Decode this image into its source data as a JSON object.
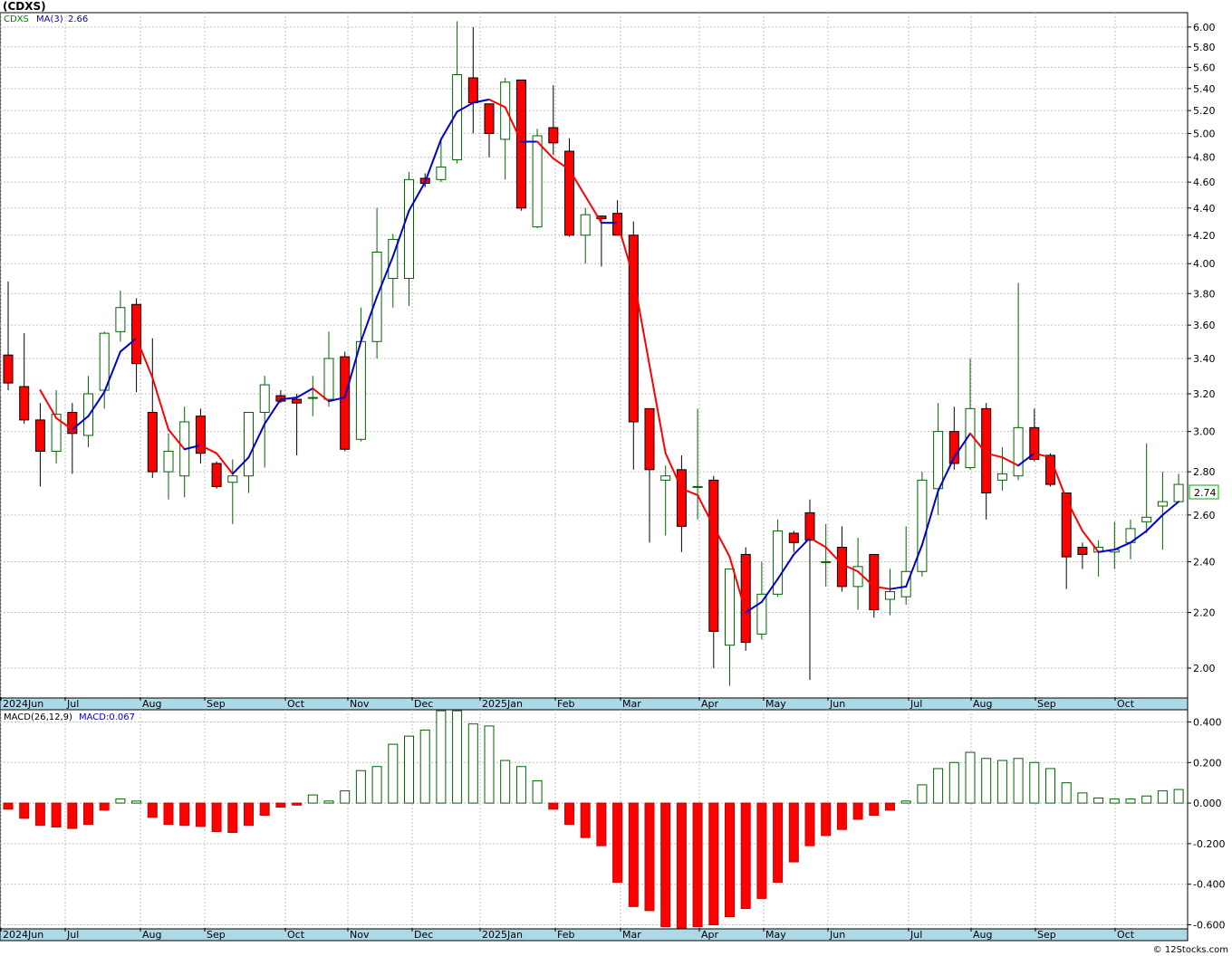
{
  "chart_data": [
    {
      "type": "candlestick",
      "title": "(CDXS)",
      "legend": [
        {
          "label": "CDXS",
          "color": "#008000"
        },
        {
          "label": "MA(3)",
          "color": "#0000cc"
        },
        {
          "label": "2.66",
          "color": "#0000cc"
        }
      ],
      "last_price": "2.74",
      "last_price_color": "#00aa00",
      "y_scale": "log",
      "ylim": [
        1.9,
        6.15
      ],
      "yticks": [
        "6.00",
        "5.80",
        "5.60",
        "5.40",
        "5.20",
        "5.00",
        "4.80",
        "4.60",
        "4.40",
        "4.20",
        "4.00",
        "3.80",
        "3.60",
        "3.40",
        "3.20",
        "3.00",
        "2.80",
        "2.60",
        "2.40",
        "2.20",
        "2.00"
      ],
      "grid": true,
      "x_labels": [
        "2024Jun",
        "Jul",
        "Aug",
        "Sep",
        "Oct",
        "Nov",
        "Dec",
        "2025Jan",
        "Feb",
        "Mar",
        "Apr",
        "May",
        "Jun",
        "Jul",
        "Aug",
        "Sep",
        "Oct"
      ],
      "up_color": "#006400",
      "down_color": "#ff0000",
      "candles": [
        {
          "o": 3.42,
          "h": 3.88,
          "l": 3.22,
          "c": 3.26
        },
        {
          "o": 3.24,
          "h": 3.55,
          "l": 3.04,
          "c": 3.06
        },
        {
          "o": 3.06,
          "h": 3.15,
          "l": 2.73,
          "c": 2.9
        },
        {
          "o": 2.9,
          "h": 3.22,
          "l": 2.84,
          "c": 3.09
        },
        {
          "o": 3.1,
          "h": 3.15,
          "l": 2.79,
          "c": 2.99
        },
        {
          "o": 2.98,
          "h": 3.3,
          "l": 2.92,
          "c": 3.2
        },
        {
          "o": 3.22,
          "h": 3.56,
          "l": 3.12,
          "c": 3.55
        },
        {
          "o": 3.56,
          "h": 3.82,
          "l": 3.5,
          "c": 3.71
        },
        {
          "o": 3.73,
          "h": 3.77,
          "l": 3.21,
          "c": 3.37
        },
        {
          "o": 3.1,
          "h": 3.52,
          "l": 2.77,
          "c": 2.8
        },
        {
          "o": 2.8,
          "h": 2.99,
          "l": 2.67,
          "c": 2.9
        },
        {
          "o": 2.78,
          "h": 3.13,
          "l": 2.68,
          "c": 3.05
        },
        {
          "o": 3.08,
          "h": 3.12,
          "l": 2.84,
          "c": 2.89
        },
        {
          "o": 2.84,
          "h": 2.85,
          "l": 2.72,
          "c": 2.73
        },
        {
          "o": 2.75,
          "h": 2.86,
          "l": 2.56,
          "c": 2.78
        },
        {
          "o": 2.78,
          "h": 3.07,
          "l": 2.7,
          "c": 3.1
        },
        {
          "o": 3.1,
          "h": 3.3,
          "l": 2.82,
          "c": 3.25
        },
        {
          "o": 3.19,
          "h": 3.22,
          "l": 3.15,
          "c": 3.16
        },
        {
          "o": 3.17,
          "h": 3.2,
          "l": 2.88,
          "c": 3.15
        },
        {
          "o": 3.18,
          "h": 3.3,
          "l": 3.08,
          "c": 3.18
        },
        {
          "o": 3.17,
          "h": 3.56,
          "l": 3.13,
          "c": 3.4
        },
        {
          "o": 3.41,
          "h": 3.44,
          "l": 2.9,
          "c": 2.91
        },
        {
          "o": 2.96,
          "h": 3.71,
          "l": 2.95,
          "c": 3.5
        },
        {
          "o": 3.5,
          "h": 4.4,
          "l": 3.4,
          "c": 4.08
        },
        {
          "o": 3.9,
          "h": 4.21,
          "l": 3.71,
          "c": 4.17
        },
        {
          "o": 3.9,
          "h": 4.68,
          "l": 3.72,
          "c": 4.62
        },
        {
          "o": 4.63,
          "h": 4.67,
          "l": 4.56,
          "c": 4.59
        },
        {
          "o": 4.62,
          "h": 4.96,
          "l": 4.6,
          "c": 4.72
        },
        {
          "o": 4.78,
          "h": 6.06,
          "l": 4.75,
          "c": 5.53
        },
        {
          "o": 5.5,
          "h": 6.0,
          "l": 5.0,
          "c": 5.27
        },
        {
          "o": 5.26,
          "h": 5.26,
          "l": 4.8,
          "c": 5.0
        },
        {
          "o": 4.95,
          "h": 5.5,
          "l": 4.62,
          "c": 5.46
        },
        {
          "o": 5.48,
          "h": 5.47,
          "l": 4.38,
          "c": 4.4
        },
        {
          "o": 4.26,
          "h": 5.04,
          "l": 4.25,
          "c": 4.98
        },
        {
          "o": 5.05,
          "h": 5.43,
          "l": 4.82,
          "c": 4.92
        },
        {
          "o": 4.85,
          "h": 4.96,
          "l": 4.19,
          "c": 4.2
        },
        {
          "o": 4.2,
          "h": 4.4,
          "l": 4.0,
          "c": 4.35
        },
        {
          "o": 4.34,
          "h": 4.34,
          "l": 3.98,
          "c": 4.32
        },
        {
          "o": 4.36,
          "h": 4.46,
          "l": 4.2,
          "c": 4.2
        },
        {
          "o": 4.2,
          "h": 4.3,
          "l": 2.81,
          "c": 3.05
        },
        {
          "o": 3.12,
          "h": 3.12,
          "l": 2.48,
          "c": 2.81
        },
        {
          "o": 2.76,
          "h": 2.83,
          "l": 2.51,
          "c": 2.78
        },
        {
          "o": 2.81,
          "h": 2.88,
          "l": 2.44,
          "c": 2.55
        },
        {
          "o": 2.73,
          "h": 3.12,
          "l": 2.58,
          "c": 2.73
        },
        {
          "o": 2.76,
          "h": 2.78,
          "l": 2.0,
          "c": 2.13
        },
        {
          "o": 2.08,
          "h": 2.37,
          "l": 1.94,
          "c": 2.37
        },
        {
          "o": 2.43,
          "h": 2.46,
          "l": 2.06,
          "c": 2.09
        },
        {
          "o": 2.12,
          "h": 2.4,
          "l": 2.1,
          "c": 2.27
        },
        {
          "o": 2.27,
          "h": 2.58,
          "l": 2.26,
          "c": 2.53
        },
        {
          "o": 2.52,
          "h": 2.53,
          "l": 2.44,
          "c": 2.48
        },
        {
          "o": 2.61,
          "h": 2.67,
          "l": 1.96,
          "c": 2.49
        },
        {
          "o": 2.4,
          "h": 2.56,
          "l": 2.3,
          "c": 2.4
        },
        {
          "o": 2.46,
          "h": 2.55,
          "l": 2.28,
          "c": 2.3
        },
        {
          "o": 2.3,
          "h": 2.5,
          "l": 2.21,
          "c": 2.38
        },
        {
          "o": 2.43,
          "h": 2.43,
          "l": 2.18,
          "c": 2.21
        },
        {
          "o": 2.25,
          "h": 2.37,
          "l": 2.19,
          "c": 2.28
        },
        {
          "o": 2.26,
          "h": 2.55,
          "l": 2.23,
          "c": 2.36
        },
        {
          "o": 2.36,
          "h": 2.8,
          "l": 2.34,
          "c": 2.76
        },
        {
          "o": 2.72,
          "h": 3.15,
          "l": 2.6,
          "c": 3.0
        },
        {
          "o": 3.0,
          "h": 3.13,
          "l": 2.81,
          "c": 2.84
        },
        {
          "o": 2.82,
          "h": 3.4,
          "l": 2.81,
          "c": 3.12
        },
        {
          "o": 3.12,
          "h": 3.15,
          "l": 2.58,
          "c": 2.7
        },
        {
          "o": 2.76,
          "h": 2.92,
          "l": 2.71,
          "c": 2.79
        },
        {
          "o": 2.78,
          "h": 3.87,
          "l": 2.76,
          "c": 3.02
        },
        {
          "o": 3.02,
          "h": 3.12,
          "l": 2.85,
          "c": 2.86
        },
        {
          "o": 2.88,
          "h": 2.89,
          "l": 2.73,
          "c": 2.74
        },
        {
          "o": 2.7,
          "h": 2.7,
          "l": 2.29,
          "c": 2.42
        },
        {
          "o": 2.46,
          "h": 2.48,
          "l": 2.37,
          "c": 2.43
        },
        {
          "o": 2.44,
          "h": 2.49,
          "l": 2.34,
          "c": 2.46
        },
        {
          "o": 2.44,
          "h": 2.57,
          "l": 2.37,
          "c": 2.45
        },
        {
          "o": 2.48,
          "h": 2.58,
          "l": 2.41,
          "c": 2.54
        },
        {
          "o": 2.57,
          "h": 2.94,
          "l": 2.52,
          "c": 2.59
        },
        {
          "o": 2.64,
          "h": 2.8,
          "l": 2.45,
          "c": 2.66
        },
        {
          "o": 2.66,
          "h": 2.79,
          "l": 2.66,
          "c": 2.74
        }
      ],
      "ma3": [
        null,
        null,
        3.22,
        3.07,
        3.01,
        3.08,
        3.21,
        3.44,
        3.52,
        3.29,
        3.01,
        2.91,
        2.93,
        2.89,
        2.79,
        2.87,
        3.04,
        3.17,
        3.18,
        3.23,
        3.16,
        3.18,
        3.5,
        3.78,
        4.05,
        4.38,
        4.6,
        4.95,
        5.19,
        5.27,
        5.3,
        5.23,
        4.93,
        4.93,
        4.79,
        4.7,
        4.49,
        4.29,
        4.29,
        3.91,
        3.36,
        2.89,
        2.72,
        2.69,
        2.55,
        2.42,
        2.2,
        2.24,
        2.33,
        2.43,
        2.5,
        2.46,
        2.39,
        2.36,
        2.3,
        2.29,
        2.3,
        2.47,
        2.71,
        2.87,
        2.99,
        2.89,
        2.87,
        2.83,
        2.89,
        2.87,
        2.67,
        2.53,
        2.44,
        2.45,
        2.48,
        2.53,
        2.6,
        2.66
      ]
    },
    {
      "type": "bar",
      "label": "MACD(26,12,9)",
      "label_value": "MACD:0.067",
      "label_value_color": "#0000cc",
      "ylim": [
        -0.62,
        0.46
      ],
      "yticks": [
        "0.400",
        "0.200",
        "0.000",
        "-0.200",
        "-0.400",
        "-0.600"
      ],
      "grid": true,
      "x_labels": [
        "2024Jun",
        "Jul",
        "Aug",
        "Sep",
        "Oct",
        "Nov",
        "Dec",
        "2025Jan",
        "Feb",
        "Mar",
        "Apr",
        "May",
        "Jun",
        "Jul",
        "Aug",
        "Sep",
        "Oct"
      ],
      "positive_color": "#006400",
      "negative_color": "#ff0000",
      "values": [
        -0.03,
        -0.075,
        -0.11,
        -0.118,
        -0.125,
        -0.105,
        -0.035,
        0.02,
        0.01,
        -0.07,
        -0.105,
        -0.11,
        -0.115,
        -0.14,
        -0.145,
        -0.11,
        -0.06,
        -0.02,
        -0.01,
        0.04,
        0.01,
        0.06,
        0.16,
        0.18,
        0.29,
        0.33,
        0.36,
        0.455,
        0.455,
        0.39,
        0.38,
        0.21,
        0.18,
        0.11,
        -0.03,
        -0.105,
        -0.17,
        -0.21,
        -0.39,
        -0.51,
        -0.53,
        -0.61,
        -0.62,
        -0.61,
        -0.6,
        -0.56,
        -0.52,
        -0.47,
        -0.39,
        -0.29,
        -0.21,
        -0.16,
        -0.13,
        -0.08,
        -0.06,
        -0.035,
        0.01,
        0.09,
        0.17,
        0.2,
        0.25,
        0.22,
        0.21,
        0.22,
        0.2,
        0.17,
        0.1,
        0.05,
        0.025,
        0.02,
        0.02,
        0.035,
        0.06,
        0.067
      ]
    }
  ],
  "credit": "© 12Stocks.com"
}
